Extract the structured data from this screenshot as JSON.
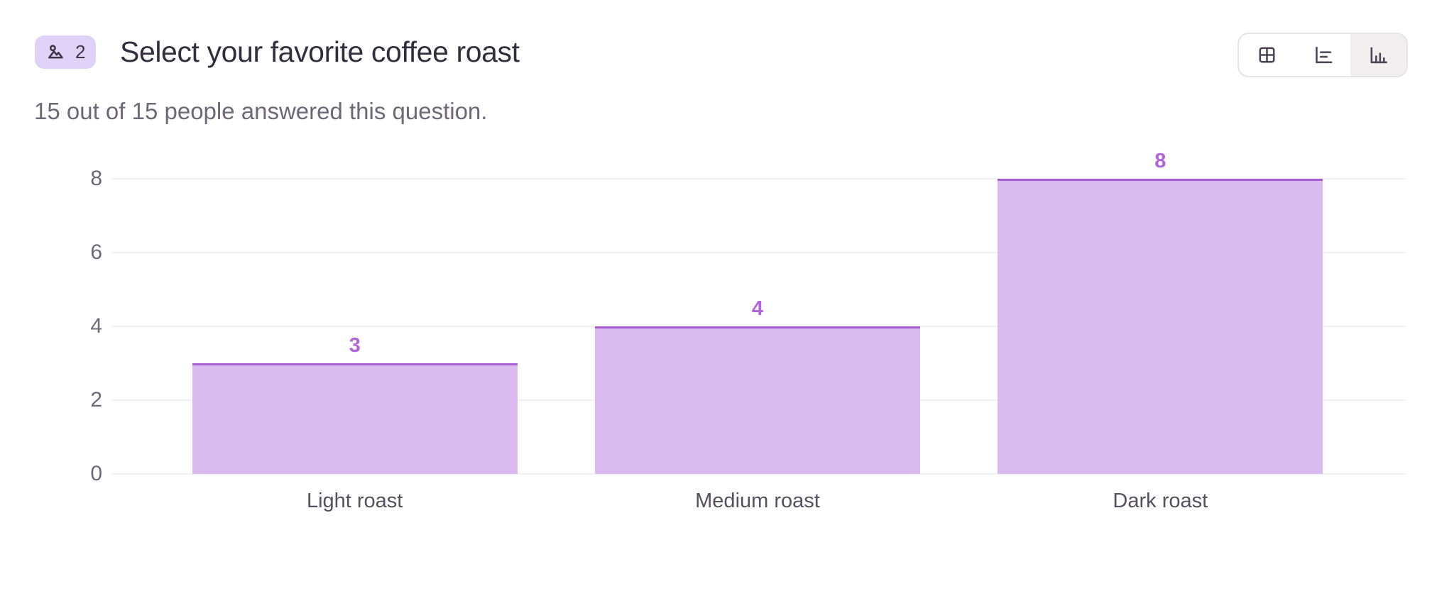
{
  "question": {
    "number": "2",
    "title": "Select your favorite coffee roast",
    "answered_summary": "15 out of 15 people answered this question.",
    "type_icon": "image-icon"
  },
  "view_toggle": {
    "options": [
      {
        "label": "table-view",
        "icon": "table-grid-icon",
        "active": false
      },
      {
        "label": "horizontal-bar-chart-view",
        "icon": "horizontal-bar-chart-icon",
        "active": false
      },
      {
        "label": "vertical-bar-chart-view",
        "icon": "vertical-bar-chart-icon",
        "active": true
      }
    ]
  },
  "chart_data": {
    "type": "bar",
    "categories": [
      "Light roast",
      "Medium roast",
      "Dark roast"
    ],
    "values": [
      3,
      4,
      8
    ],
    "title": "Select your favorite coffee roast",
    "xlabel": "",
    "ylabel": "",
    "ylim": [
      0,
      8
    ],
    "yticks": [
      0,
      2,
      4,
      6,
      8
    ],
    "grid": true,
    "legend": false,
    "bar_fill_color": "#dbbaf0",
    "bar_border_color": "#a75fd3",
    "value_label_color": "#b165da"
  },
  "colors": {
    "badge_background": "#ded2f9",
    "badge_foreground": "#3b3544",
    "title_text": "#332e3d",
    "muted_text": "#6d6876",
    "axis_tick_text": "#6e6878",
    "category_text": "#56505e",
    "gridline": "#f1f0f2",
    "toggle_border": "#e6e4e7",
    "toggle_active_background": "#f0eeee",
    "toggle_icon": "#4c4553"
  }
}
